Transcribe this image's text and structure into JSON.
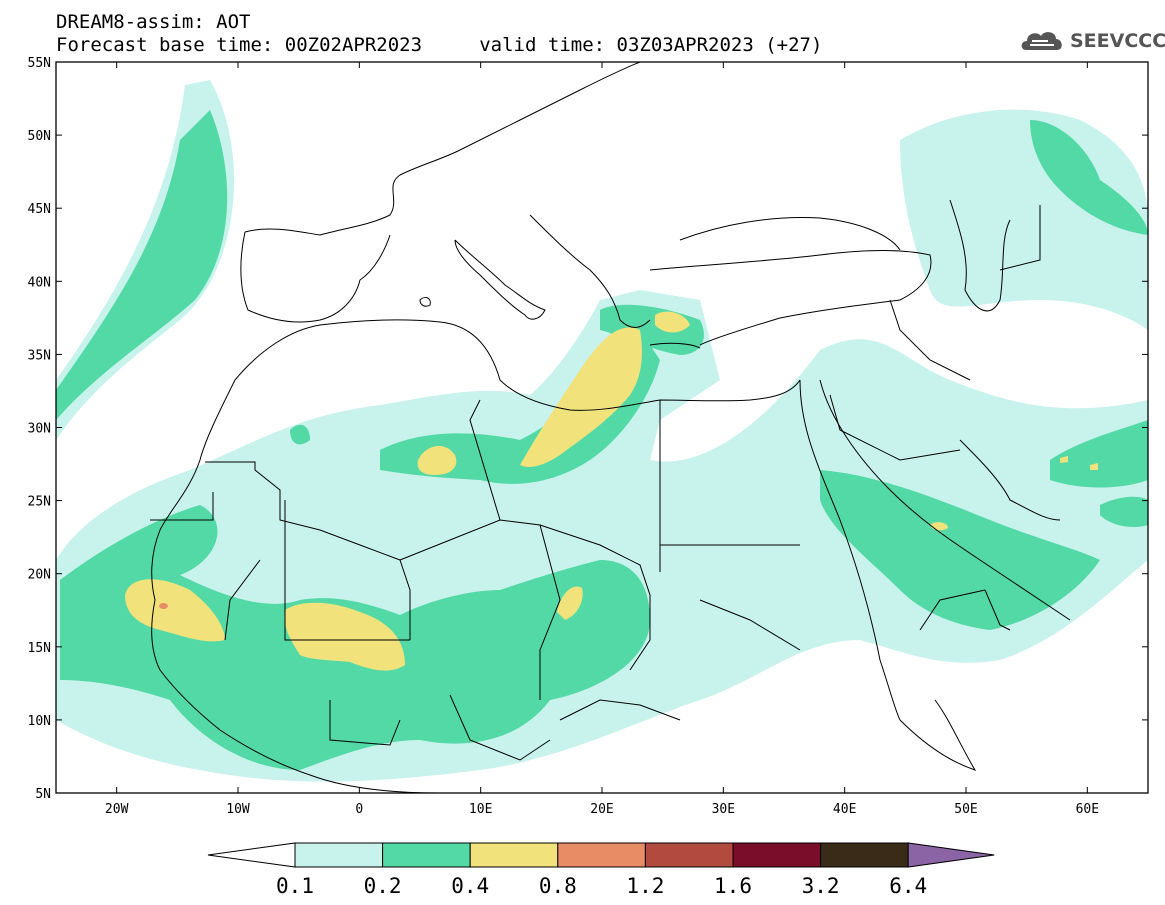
{
  "header": {
    "line1": "DREAM8-assim: AOT",
    "line2": "Forecast base time: 00Z02APR2023     valid time: 03Z03APR2023 (+27)",
    "logo_text": "SEEVCCC"
  },
  "map": {
    "lon_range": [
      -25,
      65
    ],
    "lat_range": [
      5,
      55
    ],
    "x_ticks": [
      "20W",
      "10W",
      "0",
      "10E",
      "20E",
      "30E",
      "40E",
      "50E",
      "60E"
    ],
    "y_ticks": [
      "55N",
      "50N",
      "45N",
      "40N",
      "35N",
      "30N",
      "25N",
      "20N",
      "15N",
      "10N",
      "5N"
    ],
    "colors": {
      "land_line": "#000000",
      "frame": "#000000"
    }
  },
  "colorbar": {
    "levels": [
      "0.1",
      "0.2",
      "0.4",
      "0.8",
      "1.2",
      "1.6",
      "3.2",
      "6.4"
    ],
    "colors": [
      "#ffffff",
      "#c8f2ec",
      "#52d9a6",
      "#f2e27c",
      "#e88c66",
      "#b24a40",
      "#7a0e2a",
      "#3a2a18",
      "#8a64a4"
    ]
  }
}
